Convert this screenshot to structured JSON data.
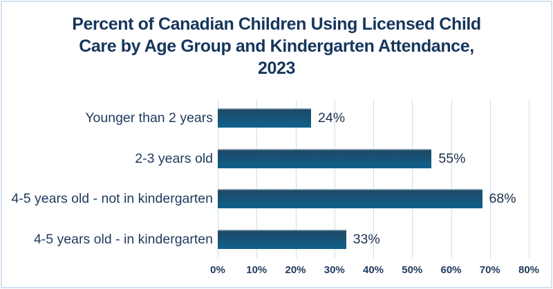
{
  "chart_data": {
    "type": "bar",
    "orientation": "horizontal",
    "title": "Percent of Canadian Children Using Licensed Child Care by Age Group and Kindergarten Attendance, 2023",
    "title_lines": [
      "Percent of Canadian Children Using Licensed Child",
      "Care by Age Group and Kindergarten Attendance,",
      "2023"
    ],
    "categories": [
      "Younger than 2 years",
      "2-3 years old",
      "4-5 years old - not in kindergarten",
      "4-5 years old - in kindergarten"
    ],
    "values": [
      24,
      55,
      68,
      33
    ],
    "value_labels": [
      "24%",
      "55%",
      "68%",
      "33%"
    ],
    "xlabel": "",
    "ylabel": "",
    "xlim": [
      0,
      80
    ],
    "x_tick_step": 10,
    "x_tick_labels": [
      "0%",
      "10%",
      "20%",
      "30%",
      "40%",
      "50%",
      "60%",
      "70%",
      "80%"
    ],
    "grid": "vertical",
    "legend": "none",
    "colors": {
      "title_text": "#16365c",
      "category_text": "#1f3a5e",
      "value_text": "#1d2f4e",
      "tick_text": "#1f3a5e",
      "gridline": "#cadeef",
      "frame_border": "#d3e2f2",
      "bar_highlight": "#93a9b9",
      "bar_top": "#1e4866",
      "bar_bottom": "#10618c",
      "background": "#ffffff"
    }
  }
}
